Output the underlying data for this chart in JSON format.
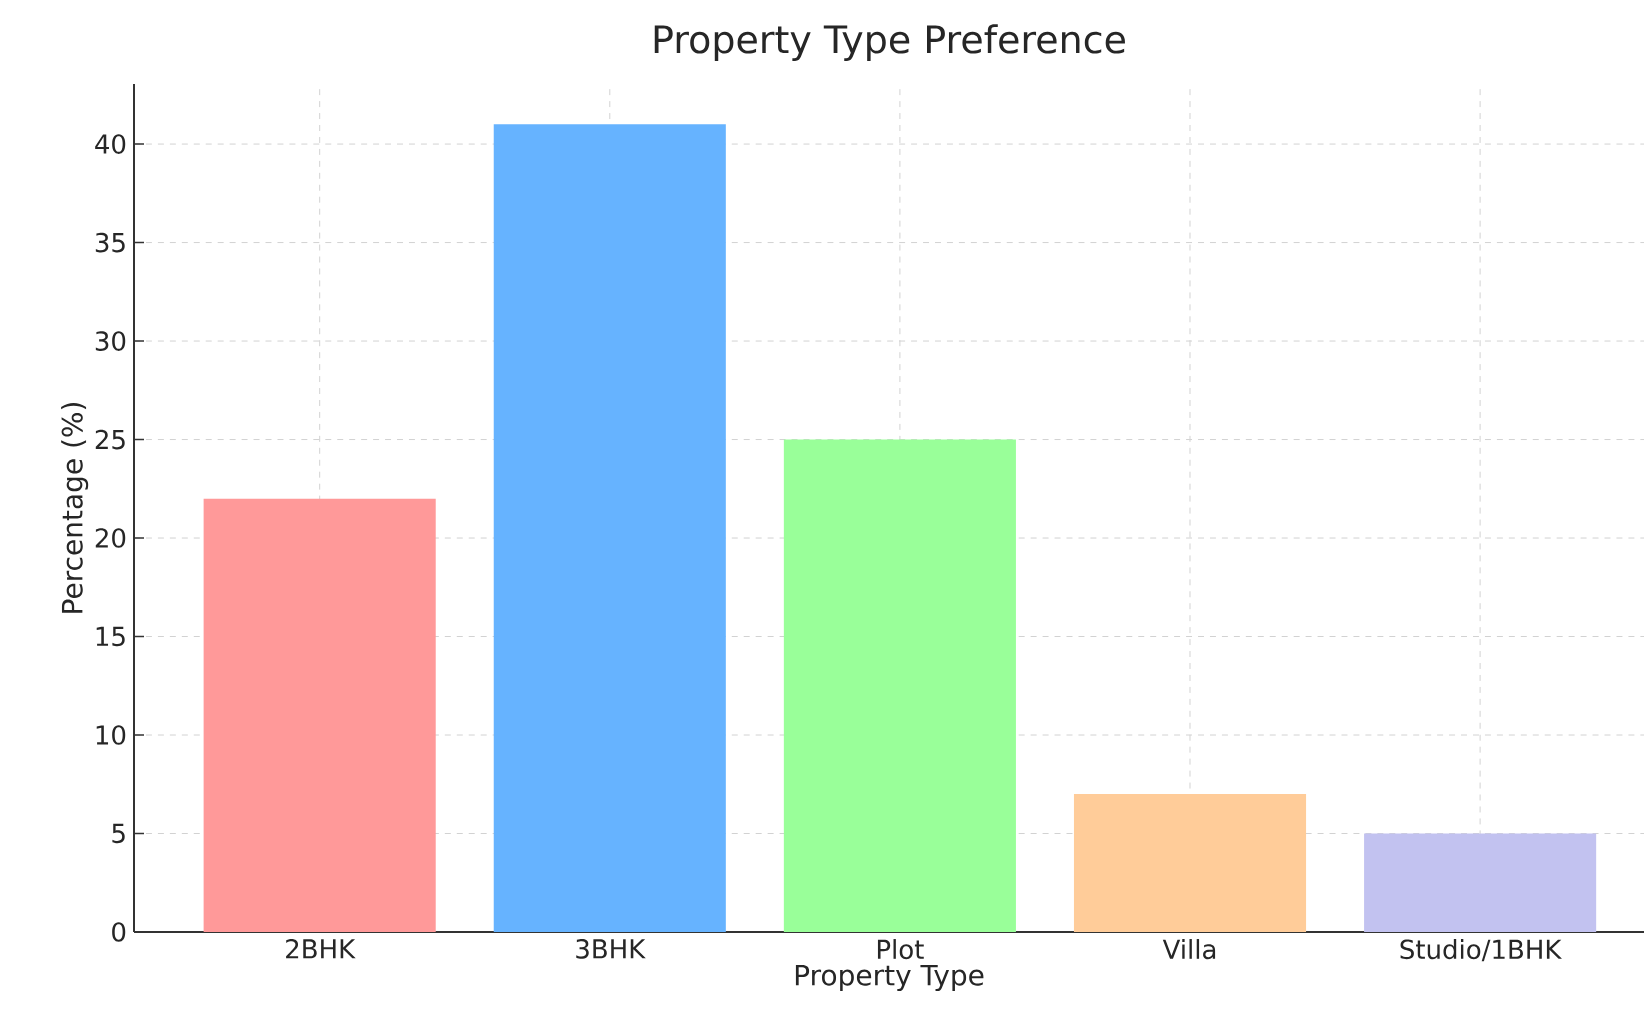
{
  "chart_data": {
    "type": "bar",
    "title": "Property Type Preference",
    "xlabel": "Property Type",
    "ylabel": "Percentage (%)",
    "categories": [
      "2BHK",
      "3BHK",
      "Plot",
      "Villa",
      "Studio/1BHK"
    ],
    "values": [
      22,
      41,
      25,
      7,
      5
    ],
    "colors": [
      "#ff9999",
      "#66b3ff",
      "#99ff99",
      "#ffcc99",
      "#c2c2f0"
    ],
    "ylim": [
      0,
      43.05
    ],
    "yticks": [
      0,
      5,
      10,
      15,
      20,
      25,
      30,
      35,
      40
    ],
    "grid": true
  }
}
